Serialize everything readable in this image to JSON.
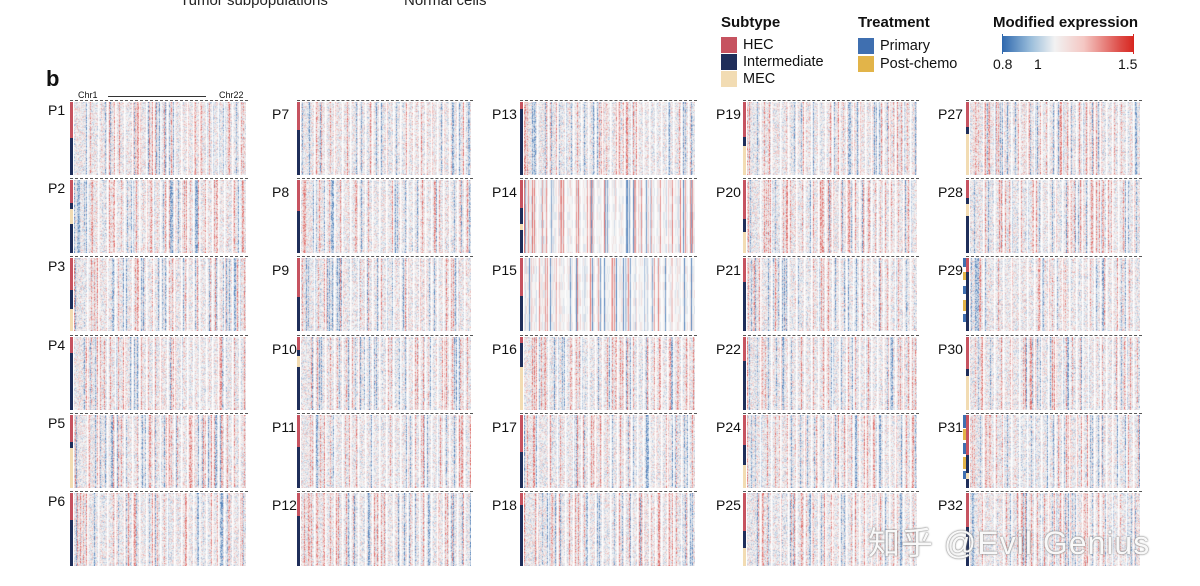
{
  "header": {
    "cut_left": "Tumor subpopulations",
    "cut_right": "Normal cells",
    "panel_letter": "b"
  },
  "legend": {
    "subtype": {
      "title": "Subtype",
      "items": [
        {
          "label": "HEC",
          "color": "#c65360"
        },
        {
          "label": "Intermediate",
          "color": "#1f2e5a"
        },
        {
          "label": "MEC",
          "color": "#f2dcb3"
        }
      ]
    },
    "treatment": {
      "title": "Treatment",
      "items": [
        {
          "label": "Primary",
          "color": "#3f6fb0"
        },
        {
          "label": "Post-chemo",
          "color": "#e2b449"
        }
      ]
    },
    "expression": {
      "title": "Modified expression",
      "min_label": "0.8",
      "mid_label": "1",
      "max_label": "1.5",
      "low_color": "#2e68ae",
      "mid_color": "#f2f2f2",
      "high_color": "#d7261f"
    }
  },
  "chromosome_axis": {
    "start": "Chr1",
    "end": "Chr22"
  },
  "patients": [
    "P1",
    "P2",
    "P3",
    "P4",
    "P5",
    "P6",
    "P7",
    "P8",
    "P9",
    "P10",
    "P11",
    "P12",
    "P13",
    "P14",
    "P15",
    "P16",
    "P17",
    "P18",
    "P19",
    "P20",
    "P21",
    "P22",
    "P24",
    "P25",
    "P27",
    "P28",
    "P29",
    "P30",
    "P31",
    "P32"
  ],
  "watermark": "知乎 @Evil Genius"
}
